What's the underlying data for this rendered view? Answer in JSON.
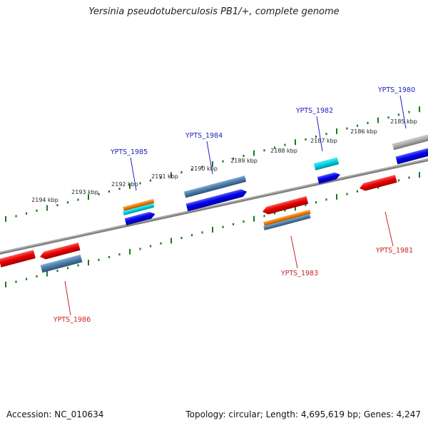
{
  "title": "Yersinia pseudotuberculosis PB1/+, complete genome",
  "footer": {
    "accession": "Accession: NC_010634",
    "topology": "Topology: circular; Length: 4,695,619 bp; Genes: 4,247"
  },
  "colors": {
    "backbone": "#808080",
    "tick": "#1a7a1a",
    "label_plus": "#2222bb",
    "label_minus": "#cc2222",
    "gene_red": "#ee0000",
    "gene_blue": "#0000ee",
    "gene_steel": "#4a7fb0",
    "gene_orange": "#f08000",
    "gene_cyan": "#00d8e8",
    "gene_gray": "#b0b0b0"
  },
  "ticks": [
    {
      "label": "2194 kbp"
    },
    {
      "label": "2193 kbp"
    },
    {
      "label": "2192 kbp"
    },
    {
      "label": "2191 kbp"
    },
    {
      "label": "2190 kbp"
    },
    {
      "label": "2189 kbp"
    },
    {
      "label": "2188 kbp"
    },
    {
      "label": "2187 kbp"
    },
    {
      "label": "2186 kbp"
    },
    {
      "label": "2185 kbp"
    }
  ],
  "gene_labels": [
    {
      "name": "YPTS_1980",
      "strand": "plus"
    },
    {
      "name": "YPTS_1982",
      "strand": "plus"
    },
    {
      "name": "YPTS_1984",
      "strand": "plus"
    },
    {
      "name": "YPTS_1985",
      "strand": "plus"
    },
    {
      "name": "YPTS_1981",
      "strand": "minus"
    },
    {
      "name": "YPTS_1983",
      "strand": "minus"
    },
    {
      "name": "YPTS_1986",
      "strand": "minus"
    }
  ]
}
